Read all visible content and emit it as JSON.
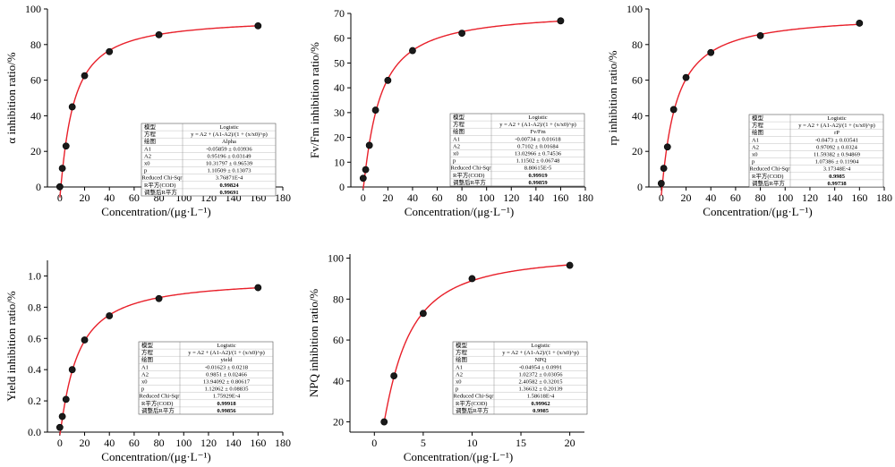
{
  "chart_data": [
    {
      "type": "scatter",
      "ylabel": "α inhibition ratio/%",
      "xlabel": "Concentration/(μg·L⁻¹)",
      "xlim": [
        -10,
        180
      ],
      "ylim": [
        0,
        100
      ],
      "xticks": [
        0,
        20,
        40,
        60,
        80,
        100,
        120,
        140,
        160,
        180
      ],
      "yticks": [
        0,
        20,
        40,
        60,
        80,
        100
      ],
      "points": [
        [
          0,
          0.1
        ],
        [
          2,
          10.5
        ],
        [
          5,
          23
        ],
        [
          10,
          45
        ],
        [
          20,
          62.5
        ],
        [
          40,
          76
        ],
        [
          80,
          85.5
        ],
        [
          160,
          90.5
        ]
      ],
      "fit": {
        "A1": -0.05859,
        "A2": 0.95196,
        "x0": 10.31797,
        "p": 1.10509,
        "scale": 100
      },
      "table": {
        "rows": [
          [
            "模型",
            "Logistic"
          ],
          [
            "方程",
            "y = A2 + (A1-A2)/(1 + (x/x0)^p)"
          ],
          [
            "绘图",
            "Alpha"
          ],
          [
            "A1",
            "-0.05859 ± 0.03936"
          ],
          [
            "A2",
            "0.95196 ± 0.03149"
          ],
          [
            "x0",
            "10.31797 ± 0.96539"
          ],
          [
            "p",
            "1.10509 ± 0.13073"
          ],
          [
            "Reduced Chi-Sqr",
            "3.76871E-4"
          ],
          [
            "R平方(COD)",
            "0.99824"
          ],
          [
            "调整后R平方",
            "0.99691"
          ]
        ]
      }
    },
    {
      "type": "scatter",
      "ylabel": "Fv/Fm inhibition ratio/%",
      "xlabel": "Concentration/(μg·L⁻¹)",
      "xlim": [
        -10,
        180
      ],
      "ylim": [
        0,
        70
      ],
      "xticks": [
        0,
        20,
        40,
        60,
        80,
        100,
        120,
        140,
        160,
        180
      ],
      "yticks": [
        0,
        10,
        20,
        30,
        40,
        50,
        60,
        70
      ],
      "points": [
        [
          0,
          3.5
        ],
        [
          2,
          7
        ],
        [
          5,
          16.8
        ],
        [
          10,
          31
        ],
        [
          20,
          43
        ],
        [
          40,
          55
        ],
        [
          80,
          62
        ],
        [
          160,
          67
        ]
      ],
      "fit": {
        "A1": -0.00734,
        "A2": 0.7102,
        "x0": 13.02966,
        "p": 1.11502,
        "scale": 100
      },
      "table": {
        "rows": [
          [
            "模型",
            "Logistic"
          ],
          [
            "方程",
            "y = A2 + (A1-A2)/(1 + (x/x0)^p)"
          ],
          [
            "绘图",
            "Fv/Fm"
          ],
          [
            "A1",
            "-0.00734 ± 0.01618"
          ],
          [
            "A2",
            "0.7102 ± 0.01684"
          ],
          [
            "x0",
            "13.02966 ± 0.74536"
          ],
          [
            "p",
            "1.11502 ± 0.06748"
          ],
          [
            "Reduced Chi-Sqr",
            "8.80615E-5"
          ],
          [
            "R平方(COD)",
            "0.99919"
          ],
          [
            "调整后R平方",
            "0.99859"
          ]
        ]
      }
    },
    {
      "type": "scatter",
      "ylabel": "rp inhibition ratio/%",
      "xlabel": "Concentration/(μg·L⁻¹)",
      "xlim": [
        -10,
        180
      ],
      "ylim": [
        0,
        100
      ],
      "xticks": [
        0,
        20,
        40,
        60,
        80,
        100,
        120,
        140,
        160,
        180
      ],
      "yticks": [
        0,
        20,
        40,
        60,
        80,
        100
      ],
      "points": [
        [
          0,
          2
        ],
        [
          2,
          10.5
        ],
        [
          5,
          22.5
        ],
        [
          10,
          43.5
        ],
        [
          20,
          61.5
        ],
        [
          40,
          75.5
        ],
        [
          80,
          85
        ],
        [
          160,
          92
        ]
      ],
      "fit": {
        "A1": -0.0473,
        "A2": 0.97092,
        "x0": 11.59382,
        "p": 1.07386,
        "scale": 100
      },
      "table": {
        "rows": [
          [
            "模型",
            "Logistic"
          ],
          [
            "方程",
            "y = A2 + (A1-A2)/(1 + (x/x0)^p)"
          ],
          [
            "绘图",
            "rP"
          ],
          [
            "A1",
            "-0.0473 ± 0.03541"
          ],
          [
            "A2",
            "0.97092 ± 0.0324"
          ],
          [
            "x0",
            "11.59382 ± 0.94869"
          ],
          [
            "p",
            "1.07386 ± 0.11904"
          ],
          [
            "Reduced Chi-Sqr",
            "3.17348E-4"
          ],
          [
            "R平方(COD)",
            "0.9985"
          ],
          [
            "调整后R平方",
            "0.99738"
          ]
        ]
      }
    },
    {
      "type": "scatter",
      "ylabel": "Yield inhibition ratio/%",
      "xlabel": "Concentration/(μg·L⁻¹)",
      "xlim": [
        -10,
        180
      ],
      "ylim": [
        0,
        1.1
      ],
      "xticks": [
        0,
        20,
        40,
        60,
        80,
        100,
        120,
        140,
        160,
        180
      ],
      "yticks": [
        0.0,
        0.2,
        0.4,
        0.6,
        0.8,
        1.0
      ],
      "ytick_labels": [
        "0.0",
        "0.2",
        "0.4",
        "0.6",
        "0.8",
        "1.0"
      ],
      "points": [
        [
          0,
          0.03
        ],
        [
          2,
          0.1
        ],
        [
          5,
          0.21
        ],
        [
          10,
          0.4
        ],
        [
          20,
          0.59
        ],
        [
          40,
          0.745
        ],
        [
          80,
          0.855
        ],
        [
          160,
          0.925
        ]
      ],
      "fit": {
        "A1": -0.01623,
        "A2": 0.9851,
        "x0": 13.94092,
        "p": 1.12062,
        "scale": 1
      },
      "table": {
        "rows": [
          [
            "模型",
            "Logistic"
          ],
          [
            "方程",
            "y = A2 + (A1-A2)/(1 + (x/x0)^p)"
          ],
          [
            "绘图",
            "yield"
          ],
          [
            "A1",
            "-0.01623 ± 0.0218"
          ],
          [
            "A2",
            "0.9851 ± 0.02466"
          ],
          [
            "x0",
            "13.94092 ± 0.80617"
          ],
          [
            "p",
            "1.12062 ± 0.08835"
          ],
          [
            "Reduced Chi-Sqr",
            "1.75929E-4"
          ],
          [
            "R平方(COD)",
            "0.99918"
          ],
          [
            "调整后R平方",
            "0.99856"
          ]
        ]
      }
    },
    {
      "type": "scatter",
      "ylabel": "NPQ inhibition ratio/%",
      "xlabel": "Concentration/(μg·L⁻¹)",
      "xlim": [
        -2.5,
        21.5
      ],
      "ylim": [
        15,
        102
      ],
      "xticks": [
        0,
        5,
        10,
        15,
        20
      ],
      "yticks": [
        20,
        40,
        60,
        80,
        100
      ],
      "points": [
        [
          1,
          20
        ],
        [
          2,
          42.5
        ],
        [
          5,
          73
        ],
        [
          10,
          90
        ],
        [
          20,
          96.5
        ]
      ],
      "fit": {
        "A1": -0.04954,
        "A2": 1.02372,
        "x0": 2.40582,
        "p": 1.36632,
        "scale": 100
      },
      "table": {
        "rows": [
          [
            "模型",
            "Logistic"
          ],
          [
            "方程",
            "y = A2 + (A1-A2)/(1 + (x/x0)^p)"
          ],
          [
            "绘图",
            "NPQ"
          ],
          [
            "A1",
            "-0.04954 ± 0.0991"
          ],
          [
            "A2",
            "1.02372 ± 0.03056"
          ],
          [
            "x0",
            "2.40582 ± 0.32015"
          ],
          [
            "p",
            "1.36632 ± 0.20139"
          ],
          [
            "Reduced Chi-Sqr",
            "1.58618E-4"
          ],
          [
            "R平方(COD)",
            "0.99962"
          ],
          [
            "调整后R平方",
            "0.9985"
          ]
        ]
      }
    }
  ],
  "colors": {
    "fit_line": "#e8202a",
    "marker": "#1a1a1a",
    "axis": "#000000"
  }
}
